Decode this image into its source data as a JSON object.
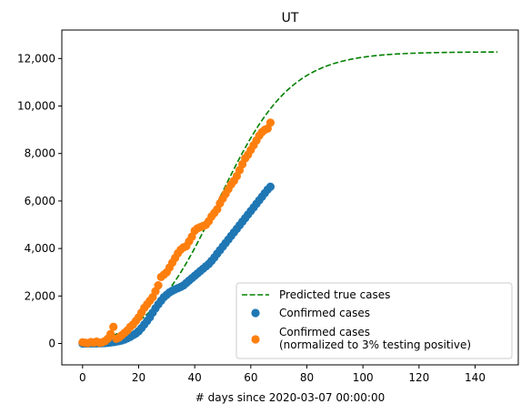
{
  "chart_data": {
    "type": "scatter",
    "title": "UT",
    "xlabel": "# days since 2020-03-07 00:00:00",
    "ylabel": "",
    "xlim": [
      -7.4,
      155.4
    ],
    "ylim": [
      -900,
      13200
    ],
    "xticks": [
      0,
      20,
      40,
      60,
      80,
      100,
      120,
      140
    ],
    "yticks": [
      0,
      2000,
      4000,
      6000,
      8000,
      10000,
      12000
    ],
    "xtick_labels": [
      "0",
      "20",
      "40",
      "60",
      "80",
      "100",
      "120",
      "140"
    ],
    "ytick_labels": [
      "0",
      "2,000",
      "4,000",
      "6,000",
      "8,000",
      "10,000",
      "12,000"
    ],
    "grid": false,
    "legend": {
      "placement": "lower-right"
    },
    "series": [
      {
        "name": "Predicted true cases",
        "style": "dashed-line",
        "color": "#008000",
        "logistic": {
          "L": 12600,
          "k": 0.0775,
          "x0": 48.3,
          "offset": -320
        },
        "x_range": [
          0,
          148
        ]
      },
      {
        "name": "Confirmed cases",
        "style": "scatter",
        "color": "#1f77b4",
        "x": [
          0,
          1,
          2,
          3,
          4,
          5,
          6,
          7,
          8,
          9,
          10,
          11,
          12,
          13,
          14,
          15,
          16,
          17,
          18,
          19,
          20,
          21,
          22,
          23,
          24,
          25,
          26,
          27,
          28,
          29,
          30,
          31,
          32,
          33,
          34,
          35,
          36,
          37,
          38,
          39,
          40,
          41,
          42,
          43,
          44,
          45,
          46,
          47,
          48,
          49,
          50,
          51,
          52,
          53,
          54,
          55,
          56,
          57,
          58,
          59,
          60,
          61,
          62,
          63,
          64,
          65,
          66,
          67
        ],
        "y": [
          0,
          0,
          1,
          2,
          3,
          5,
          8,
          12,
          20,
          30,
          45,
          60,
          80,
          100,
          130,
          170,
          220,
          280,
          350,
          420,
          520,
          650,
          800,
          950,
          1100,
          1300,
          1480,
          1650,
          1800,
          1950,
          2050,
          2150,
          2220,
          2280,
          2330,
          2380,
          2450,
          2550,
          2650,
          2750,
          2850,
          2950,
          3050,
          3150,
          3250,
          3350,
          3480,
          3620,
          3780,
          3930,
          4080,
          4230,
          4380,
          4530,
          4680,
          4830,
          4980,
          5130,
          5280,
          5430,
          5580,
          5730,
          5880,
          6030,
          6180,
          6330,
          6480,
          6600
        ]
      },
      {
        "name": "Confirmed cases\n(normalized to 3% testing positive)",
        "style": "scatter",
        "color": "#ff7f0e",
        "x": [
          0,
          1,
          2,
          3,
          4,
          5,
          6,
          7,
          8,
          9,
          10,
          11,
          12,
          13,
          14,
          15,
          16,
          17,
          18,
          19,
          20,
          21,
          22,
          23,
          24,
          25,
          26,
          27,
          28,
          29,
          30,
          31,
          32,
          33,
          34,
          35,
          36,
          37,
          38,
          39,
          40,
          41,
          42,
          43,
          44,
          45,
          46,
          47,
          48,
          49,
          50,
          51,
          52,
          53,
          54,
          55,
          56,
          57,
          58,
          59,
          60,
          61,
          62,
          63,
          64,
          65,
          66,
          67
        ],
        "y": [
          50,
          30,
          20,
          60,
          40,
          80,
          30,
          50,
          100,
          200,
          400,
          700,
          200,
          250,
          350,
          450,
          550,
          700,
          800,
          950,
          1100,
          1300,
          1500,
          1650,
          1800,
          1950,
          2200,
          2450,
          2800,
          2900,
          3000,
          3200,
          3400,
          3600,
          3800,
          3950,
          4050,
          4100,
          4300,
          4500,
          4750,
          4850,
          4900,
          4950,
          5000,
          5150,
          5350,
          5500,
          5650,
          5900,
          6100,
          6300,
          6500,
          6700,
          6850,
          7050,
          7300,
          7550,
          7800,
          7950,
          8150,
          8350,
          8550,
          8750,
          8900,
          9000,
          9050,
          9300
        ]
      }
    ]
  }
}
